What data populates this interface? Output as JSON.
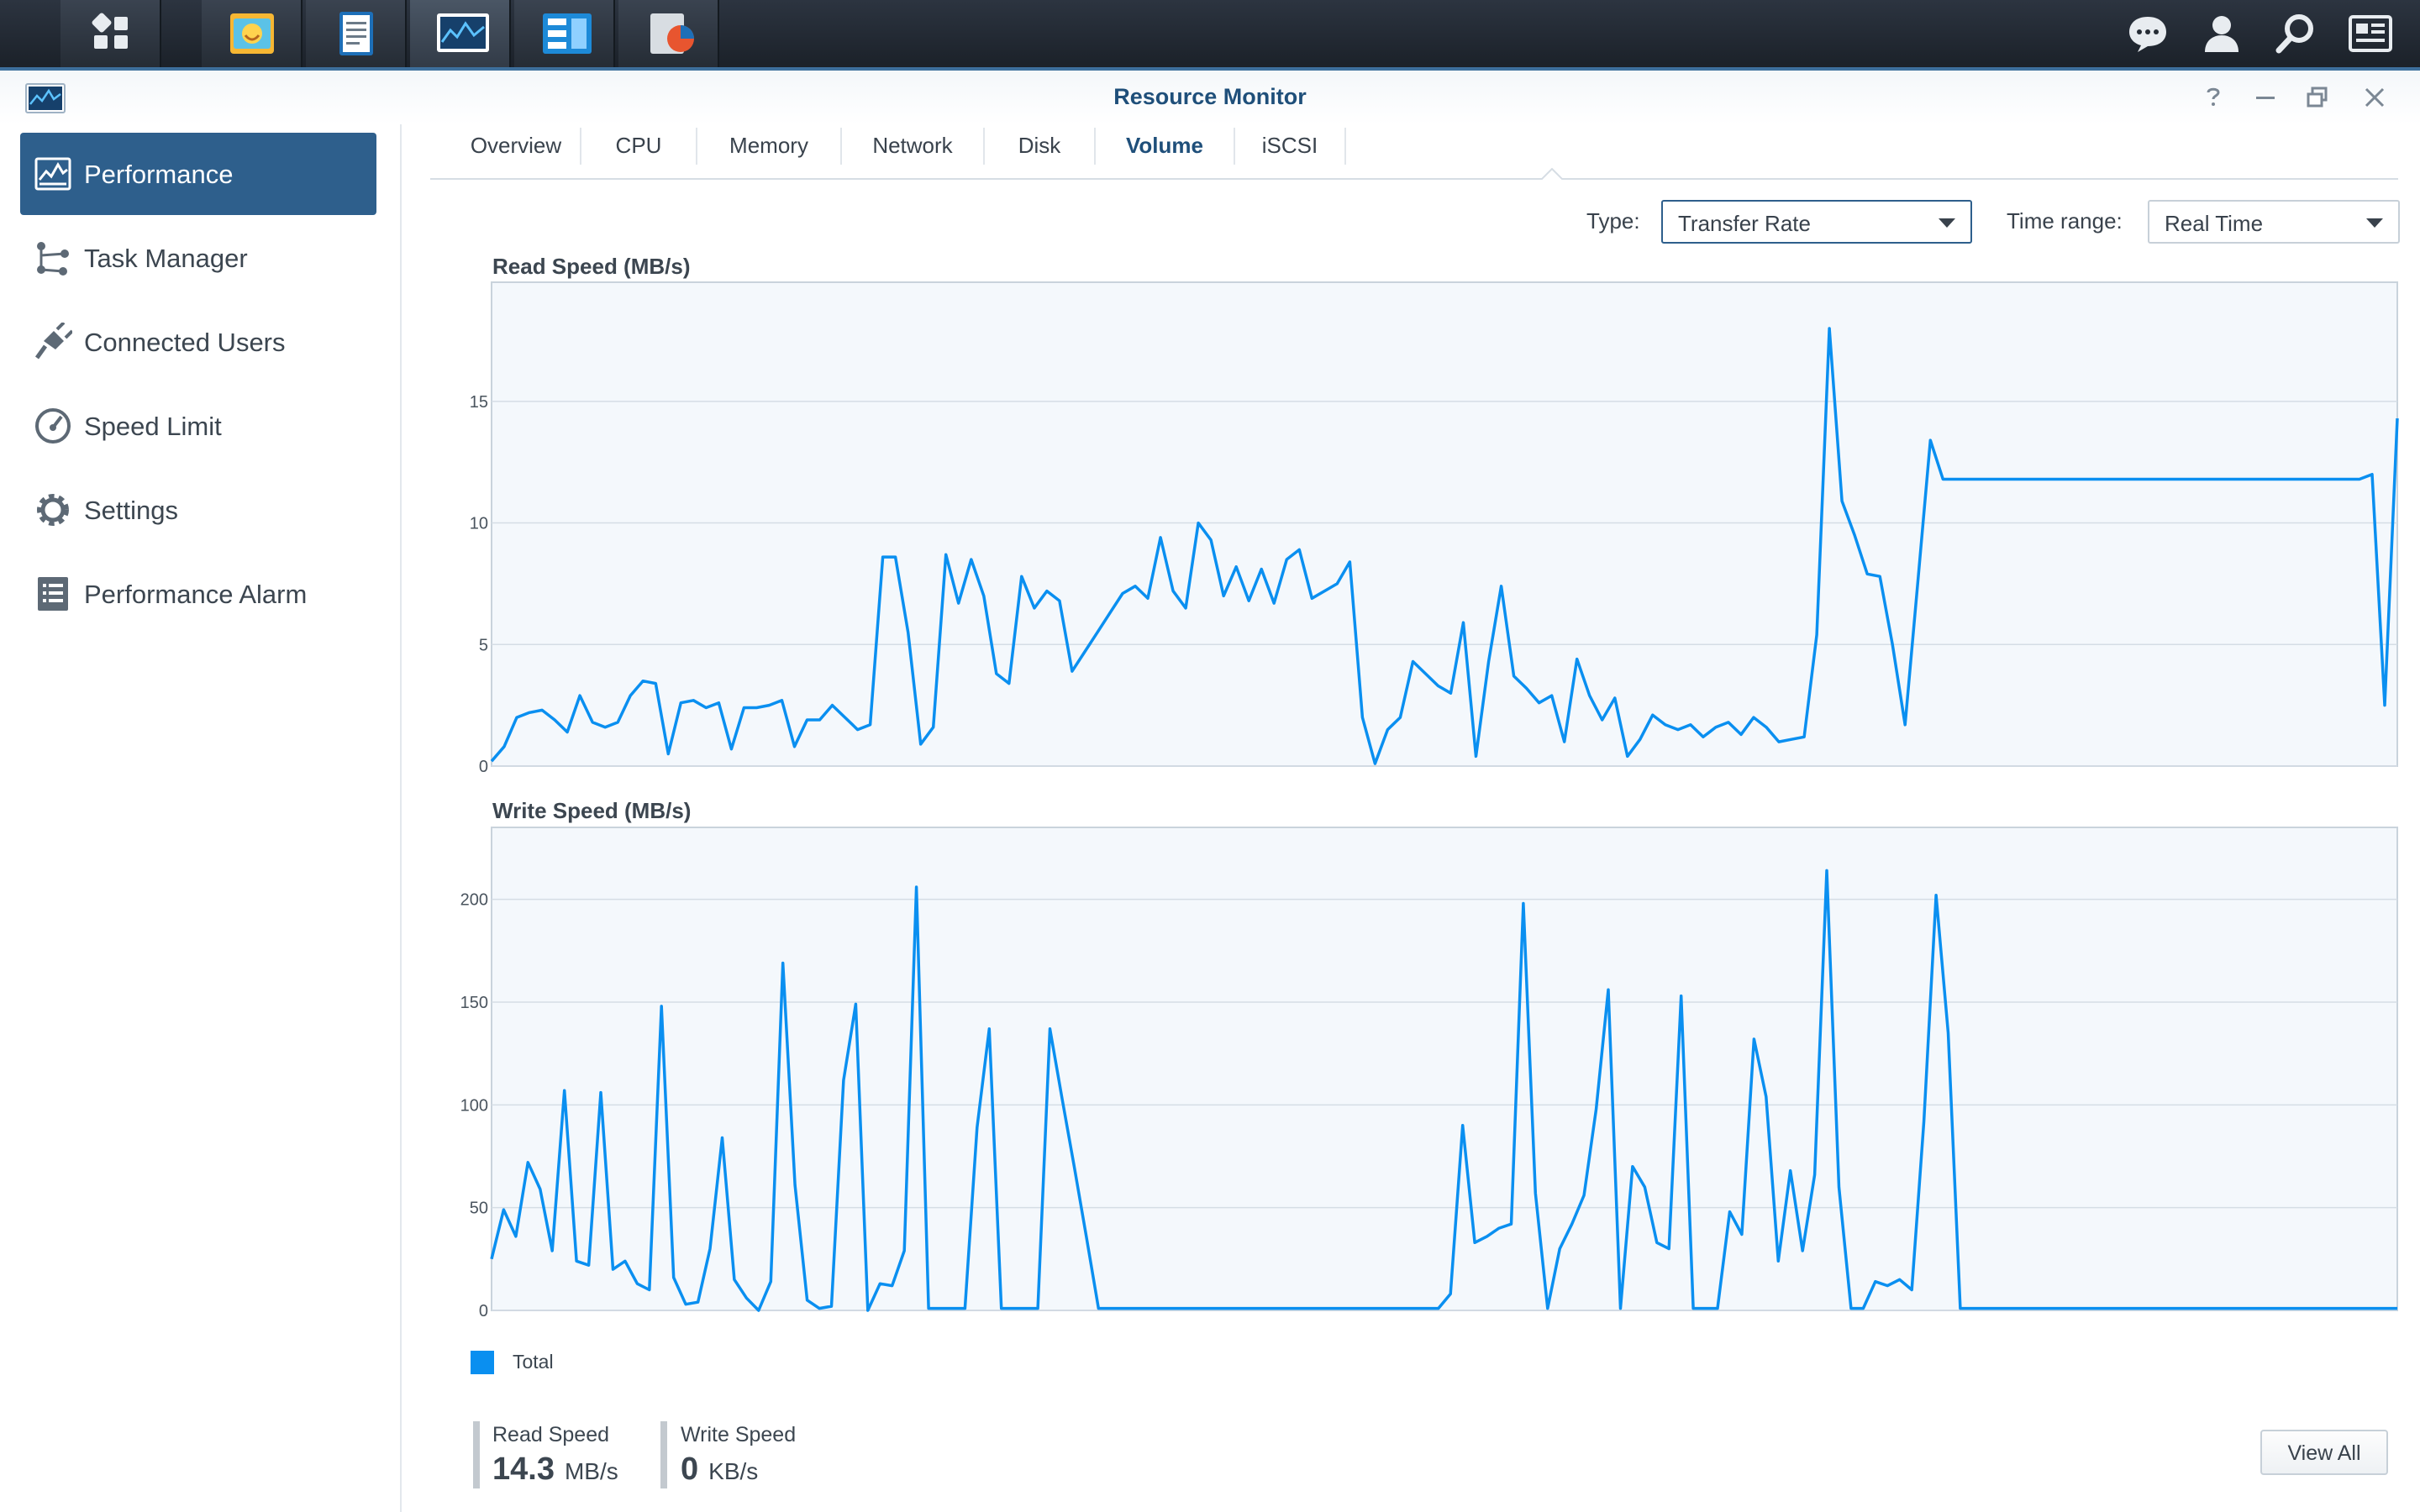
{
  "window": {
    "title": "Resource Monitor"
  },
  "sidebar": {
    "items": [
      {
        "label": "Performance",
        "icon": "performance-icon",
        "active": true
      },
      {
        "label": "Task Manager",
        "icon": "task-manager-icon"
      },
      {
        "label": "Connected Users",
        "icon": "plug-icon"
      },
      {
        "label": "Speed Limit",
        "icon": "gauge-icon"
      },
      {
        "label": "Settings",
        "icon": "gear-icon"
      },
      {
        "label": "Performance Alarm",
        "icon": "list-icon"
      }
    ]
  },
  "tabs": [
    "Overview",
    "CPU",
    "Memory",
    "Network",
    "Disk",
    "Volume",
    "iSCSI"
  ],
  "active_tab": "Volume",
  "controls": {
    "type_label": "Type:",
    "type_value": "Transfer Rate",
    "range_label": "Time range:",
    "range_value": "Real Time"
  },
  "colors": {
    "accent": "#2e5f8c",
    "series": "#0a8ff0",
    "plot_bg": "#f4f8fc"
  },
  "chart_data": [
    {
      "type": "line",
      "title": "Read Speed (MB/s)",
      "ylim": [
        0,
        19.9
      ],
      "yticks": [
        0,
        5,
        10,
        15
      ],
      "grid": true,
      "series": [
        {
          "name": "Total",
          "values": [
            0.2,
            0.8,
            2.0,
            2.2,
            2.3,
            1.9,
            1.4,
            2.9,
            1.8,
            1.6,
            1.8,
            2.9,
            3.5,
            3.4,
            0.5,
            2.6,
            2.7,
            2.4,
            2.6,
            0.7,
            2.4,
            2.4,
            2.5,
            2.7,
            0.8,
            1.9,
            1.9,
            2.5,
            2.0,
            1.5,
            1.7,
            8.6,
            8.6,
            5.5,
            0.9,
            1.6,
            8.7,
            6.7,
            8.5,
            7.0,
            3.8,
            3.4,
            7.8,
            6.5,
            7.2,
            6.8,
            3.9,
            4.7,
            5.5,
            6.3,
            7.1,
            7.4,
            6.9,
            9.4,
            7.2,
            6.5,
            10.0,
            9.3,
            7.0,
            8.2,
            6.8,
            8.1,
            6.7,
            8.5,
            8.9,
            6.9,
            7.2,
            7.5,
            8.4,
            2.0,
            0.1,
            1.5,
            2.0,
            4.3,
            3.8,
            3.3,
            3.0,
            5.9,
            0.4,
            4.3,
            7.4,
            3.7,
            3.2,
            2.6,
            2.9,
            1.0,
            4.4,
            2.9,
            1.9,
            2.8,
            0.4,
            1.1,
            2.1,
            1.7,
            1.5,
            1.7,
            1.2,
            1.6,
            1.8,
            1.3,
            2.0,
            1.6,
            1.0,
            1.1,
            1.2,
            5.4,
            18.0,
            10.9,
            9.5,
            7.9,
            7.8,
            5.0,
            1.7,
            7.5,
            13.4,
            11.8,
            11.8,
            11.8,
            11.8,
            11.8,
            11.8,
            11.8,
            11.8,
            11.8,
            11.8,
            11.8,
            11.8,
            11.8,
            11.8,
            11.8,
            11.8,
            11.8,
            11.8,
            11.8,
            11.8,
            11.8,
            11.8,
            11.8,
            11.8,
            11.8,
            11.8,
            11.8,
            11.8,
            11.8,
            11.8,
            11.8,
            11.8,
            11.8,
            11.8,
            12.0,
            2.5,
            14.3
          ]
        }
      ]
    },
    {
      "type": "line",
      "title": "Write Speed (MB/s)",
      "ylim": [
        0,
        235
      ],
      "yticks": [
        0,
        50,
        100,
        150,
        200
      ],
      "grid": true,
      "series": [
        {
          "name": "Total",
          "values": [
            25,
            49,
            36,
            72,
            59,
            29,
            107,
            24,
            22,
            106,
            20,
            24,
            13,
            10,
            148,
            16,
            3,
            4,
            30,
            84,
            15,
            6,
            0,
            14,
            169,
            61,
            5,
            1,
            2,
            112,
            149,
            0,
            13,
            12,
            29,
            206,
            1,
            1,
            1,
            1,
            89,
            137,
            1,
            1,
            1,
            1,
            137,
            103,
            70,
            36,
            1,
            1,
            1,
            1,
            1,
            1,
            1,
            1,
            1,
            1,
            1,
            1,
            1,
            1,
            1,
            1,
            1,
            1,
            1,
            1,
            1,
            1,
            1,
            1,
            1,
            1,
            1,
            1,
            1,
            8,
            90,
            33,
            36,
            40,
            42,
            198,
            57,
            1,
            30,
            42,
            56,
            98,
            156,
            1,
            70,
            60,
            33,
            30,
            153,
            1,
            1,
            1,
            48,
            37,
            132,
            104,
            24,
            68,
            29,
            66,
            214,
            60,
            1,
            1,
            14,
            12,
            15,
            10,
            92,
            202,
            135,
            1,
            1,
            1,
            1,
            1,
            1,
            1,
            1,
            1,
            1,
            1,
            1,
            1,
            1,
            1,
            1,
            1,
            1,
            1,
            1,
            1,
            1,
            1,
            1,
            1,
            1,
            1,
            1,
            1,
            1,
            1,
            1,
            1,
            1,
            1,
            1,
            1
          ]
        }
      ]
    }
  ],
  "legend": {
    "label": "Total"
  },
  "stats": {
    "read_label": "Read Speed",
    "read_value": "14.3",
    "read_unit": "MB/s",
    "write_label": "Write Speed",
    "write_value": "0",
    "write_unit": "KB/s"
  },
  "view_all_label": "View All"
}
